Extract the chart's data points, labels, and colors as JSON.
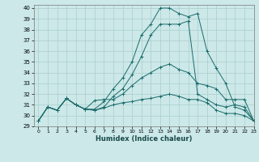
{
  "xlabel": "Humidex (Indice chaleur)",
  "xlim": [
    -0.5,
    23
  ],
  "ylim": [
    29,
    40.3
  ],
  "yticks": [
    29,
    30,
    31,
    32,
    33,
    34,
    35,
    36,
    37,
    38,
    39,
    40
  ],
  "xticks": [
    0,
    1,
    2,
    3,
    4,
    5,
    6,
    7,
    8,
    9,
    10,
    11,
    12,
    13,
    14,
    15,
    16,
    17,
    18,
    19,
    20,
    21,
    22,
    23
  ],
  "background_color": "#cce8e8",
  "grid_color": "#aacece",
  "line_color": "#1a6b6b",
  "lines": [
    [
      29.5,
      30.8,
      30.5,
      31.6,
      31.0,
      30.6,
      30.6,
      31.3,
      32.5,
      33.5,
      35.0,
      37.5,
      38.5,
      40.0,
      40.0,
      39.5,
      39.2,
      39.5,
      36.0,
      34.4,
      33.0,
      30.8,
      30.5,
      29.5
    ],
    [
      29.5,
      30.8,
      30.5,
      31.6,
      31.0,
      30.6,
      31.4,
      31.5,
      31.5,
      32.0,
      32.8,
      33.5,
      34.0,
      34.5,
      34.8,
      34.3,
      34.0,
      33.0,
      32.8,
      32.5,
      31.5,
      31.5,
      31.5,
      29.5
    ],
    [
      29.5,
      30.8,
      30.5,
      31.6,
      31.0,
      30.6,
      30.5,
      30.7,
      31.0,
      31.2,
      31.3,
      31.5,
      31.6,
      31.8,
      32.0,
      31.8,
      31.5,
      31.5,
      31.2,
      30.5,
      30.2,
      30.2,
      30.0,
      29.5
    ],
    [
      29.5,
      30.8,
      30.5,
      31.6,
      31.0,
      30.6,
      30.5,
      30.8,
      31.8,
      32.5,
      33.8,
      35.5,
      37.5,
      38.5,
      38.5,
      38.5,
      38.8,
      32.0,
      31.5,
      31.0,
      30.8,
      31.0,
      30.8,
      29.5
    ]
  ]
}
